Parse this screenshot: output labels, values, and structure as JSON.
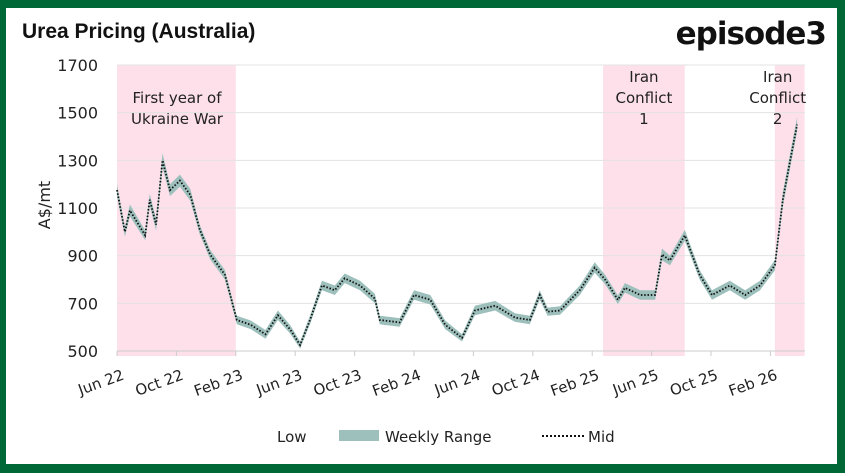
{
  "chart_data": {
    "type": "area",
    "title": "Urea Pricing (Australia)",
    "brand": "episode3",
    "ylabel": "A$/mt",
    "xlabel": "",
    "ylim": [
      500,
      1700
    ],
    "yticks": [
      500,
      700,
      900,
      1100,
      1300,
      1500,
      1700
    ],
    "xticks": [
      {
        "label": "Jun 22",
        "date": "2022-06-01"
      },
      {
        "label": "Oct 22",
        "date": "2022-10-01"
      },
      {
        "label": "Feb 23",
        "date": "2023-02-01"
      },
      {
        "label": "Jun 23",
        "date": "2023-06-01"
      },
      {
        "label": "Oct 23",
        "date": "2023-10-01"
      },
      {
        "label": "Feb 24",
        "date": "2024-02-01"
      },
      {
        "label": "Jun 24",
        "date": "2024-06-01"
      },
      {
        "label": "Oct 24",
        "date": "2024-10-01"
      },
      {
        "label": "Feb 25",
        "date": "2025-02-01"
      },
      {
        "label": "Jun 25",
        "date": "2025-06-01"
      },
      {
        "label": "Oct 25",
        "date": "2025-10-01"
      },
      {
        "label": "Feb 26",
        "date": "2026-02-01"
      }
    ],
    "grid": true,
    "legend_position": "bottom",
    "legend": [
      "Low",
      "Weekly Range",
      "Mid"
    ],
    "colors": {
      "range": "#9dc0bc",
      "mid": "#111111",
      "highlight": "#fde0ea",
      "frame": "#006837"
    },
    "highlights": [
      {
        "label": [
          "First year of",
          "Ukraine War"
        ],
        "start": "2022-06-01",
        "end": "2023-02-01"
      },
      {
        "label": [
          "Iran",
          "Conflict",
          "1"
        ],
        "start": "2025-02-23",
        "end": "2025-08-08"
      },
      {
        "label": [
          "Iran",
          "Conflict",
          "2"
        ],
        "start": "2026-02-10",
        "end": "2026-04-10"
      }
    ],
    "series": {
      "dates": [
        "2022-06-01",
        "2022-06-17",
        "2022-06-27",
        "2022-07-28",
        "2022-08-07",
        "2022-08-20",
        "2022-09-03",
        "2022-09-18",
        "2022-10-08",
        "2022-10-29",
        "2022-11-18",
        "2022-12-09",
        "2023-01-09",
        "2023-02-03",
        "2023-03-01",
        "2023-03-31",
        "2023-04-26",
        "2023-05-21",
        "2023-06-11",
        "2023-07-01",
        "2023-07-25",
        "2023-08-21",
        "2023-09-11",
        "2023-10-12",
        "2023-11-12",
        "2023-11-22",
        "2024-01-02",
        "2024-02-01",
        "2024-03-04",
        "2024-04-04",
        "2024-05-08",
        "2024-06-04",
        "2024-07-15",
        "2024-08-25",
        "2024-09-25",
        "2024-10-15",
        "2024-11-01",
        "2024-11-26",
        "2025-01-06",
        "2025-02-06",
        "2025-02-27",
        "2025-03-23",
        "2025-04-07",
        "2025-05-08",
        "2025-06-08",
        "2025-06-22",
        "2025-07-08",
        "2025-08-08",
        "2025-09-08",
        "2025-10-03",
        "2025-11-09",
        "2025-12-10",
        "2026-01-10",
        "2026-02-10",
        "2026-02-26",
        "2026-03-11",
        "2026-03-25"
      ],
      "mid": [
        1175,
        1000,
        1090,
        985,
        1135,
        1030,
        1300,
        1175,
        1215,
        1155,
        1010,
        905,
        820,
        630,
        610,
        570,
        650,
        590,
        525,
        630,
        775,
        755,
        805,
        775,
        720,
        630,
        620,
        735,
        715,
        610,
        555,
        670,
        690,
        640,
        630,
        735,
        665,
        670,
        755,
        850,
        800,
        715,
        765,
        735,
        735,
        905,
        880,
        985,
        820,
        735,
        775,
        735,
        775,
        860,
        1135,
        1300,
        1450
      ],
      "low": [
        1150,
        980,
        1065,
        965,
        1110,
        1005,
        1270,
        1150,
        1190,
        1130,
        990,
        885,
        800,
        612,
        592,
        552,
        630,
        572,
        510,
        612,
        755,
        735,
        785,
        755,
        700,
        612,
        602,
        715,
        695,
        592,
        540,
        650,
        670,
        622,
        612,
        715,
        648,
        652,
        735,
        828,
        780,
        697,
        745,
        715,
        715,
        880,
        860,
        962,
        800,
        715,
        755,
        715,
        755,
        838,
        1105,
        1270,
        1420
      ],
      "high": [
        1200,
        1020,
        1115,
        1005,
        1160,
        1055,
        1330,
        1200,
        1240,
        1180,
        1030,
        925,
        840,
        648,
        628,
        588,
        670,
        608,
        540,
        648,
        795,
        775,
        825,
        795,
        740,
        648,
        638,
        755,
        735,
        628,
        570,
        690,
        710,
        658,
        648,
        755,
        682,
        688,
        775,
        872,
        820,
        733,
        785,
        755,
        755,
        930,
        900,
        1008,
        840,
        755,
        795,
        755,
        795,
        882,
        1165,
        1330,
        1480
      ]
    }
  }
}
